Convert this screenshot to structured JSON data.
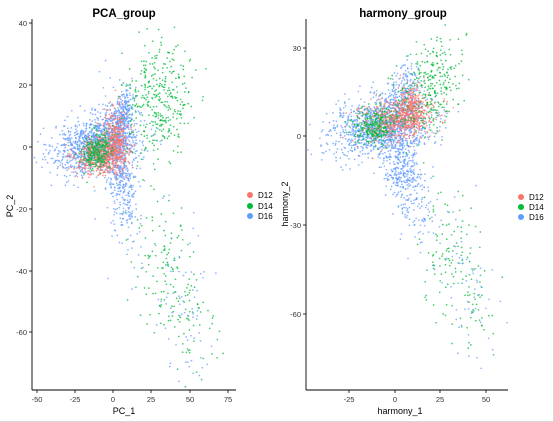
{
  "chart_data": [
    {
      "type": "scatter",
      "title": "PCA_group",
      "xlabel": "PC_1",
      "ylabel": "PC_2",
      "xlim": [
        -52,
        80
      ],
      "ylim": [
        -80,
        41
      ],
      "x_ticks": [
        -50,
        -25,
        0,
        25,
        50,
        75
      ],
      "y_ticks": [
        40,
        20,
        0,
        -20,
        -40,
        -60
      ],
      "x_tick_labels": [
        "-50",
        "-25",
        "0",
        "25",
        "50",
        "75"
      ],
      "y_tick_labels": [
        "40",
        "20",
        "0",
        "-20",
        "-40",
        "-60"
      ],
      "grid": false,
      "legend_position": "right",
      "series": [
        {
          "name": "D12",
          "color": "#F8766D"
        },
        {
          "name": "D14",
          "color": "#00BA38"
        },
        {
          "name": "D16",
          "color": "#619CFF"
        }
      ]
    },
    {
      "type": "scatter",
      "title": "harmony_group",
      "xlabel": "harmony_1",
      "ylabel": "harmony_2",
      "xlim": [
        -45,
        65
      ],
      "ylim": [
        -86,
        35
      ],
      "x_ticks": [
        -25,
        0,
        25,
        50
      ],
      "y_ticks": [
        30,
        0,
        -30,
        -60
      ],
      "x_tick_labels": [
        "-25",
        "0",
        "25",
        "50"
      ],
      "y_tick_labels": [
        "30",
        "0",
        "-30",
        "-60"
      ],
      "grid": false,
      "legend_position": "right",
      "series": [
        {
          "name": "D12",
          "color": "#F8766D"
        },
        {
          "name": "D14",
          "color": "#00BA38"
        },
        {
          "name": "D16",
          "color": "#619CFF"
        }
      ]
    }
  ]
}
